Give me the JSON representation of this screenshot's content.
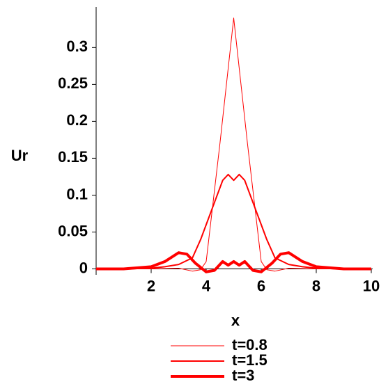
{
  "chart_data": {
    "type": "line",
    "x_label": "x",
    "y_label": "Ur",
    "xlim": [
      0,
      10
    ],
    "ylim": [
      -0.008,
      0.355
    ],
    "xticks": [
      2,
      4,
      6,
      8,
      10
    ],
    "yticks": [
      0,
      0.05,
      0.1,
      0.15,
      0.2,
      0.25,
      0.3
    ],
    "series": [
      {
        "name": "t=0.8",
        "color": "#ff0000",
        "width": 1,
        "x": [
          0,
          1,
          2,
          3,
          3.5,
          3.8,
          4,
          4.5,
          5,
          5.5,
          6,
          6.2,
          6.5,
          7,
          8,
          9,
          10
        ],
        "values": [
          0,
          0,
          0,
          0.001,
          -0.003,
          -0.001,
          0.01,
          0.17,
          0.34,
          0.17,
          0.01,
          -0.001,
          -0.003,
          0.001,
          0,
          0,
          0
        ]
      },
      {
        "name": "t=1.5",
        "color": "#ff0000",
        "width": 2,
        "x": [
          0,
          1,
          2,
          2.5,
          3,
          3.5,
          3.8,
          4,
          4.3,
          4.6,
          4.8,
          5,
          5.2,
          5.4,
          5.7,
          6,
          6.2,
          6.5,
          7,
          7.5,
          8,
          9,
          10
        ],
        "values": [
          0,
          0,
          0.001,
          0.003,
          0.006,
          0.015,
          0.04,
          0.06,
          0.09,
          0.12,
          0.128,
          0.12,
          0.128,
          0.12,
          0.09,
          0.06,
          0.04,
          0.015,
          0.006,
          0.003,
          0.001,
          0,
          0
        ]
      },
      {
        "name": "t=3",
        "color": "#ff0000",
        "width": 4,
        "x": [
          0,
          1,
          2,
          2.5,
          3,
          3.3,
          3.6,
          4,
          4.3,
          4.6,
          4.8,
          5,
          5.2,
          5.4,
          5.7,
          6,
          6.4,
          6.7,
          7,
          7.5,
          8,
          9,
          10
        ],
        "values": [
          0,
          0,
          0.003,
          0.01,
          0.022,
          0.02,
          0.008,
          -0.004,
          -0.002,
          0.01,
          0.005,
          0.01,
          0.005,
          0.01,
          -0.002,
          -0.004,
          0.008,
          0.02,
          0.022,
          0.01,
          0.003,
          0,
          0
        ]
      }
    ]
  }
}
